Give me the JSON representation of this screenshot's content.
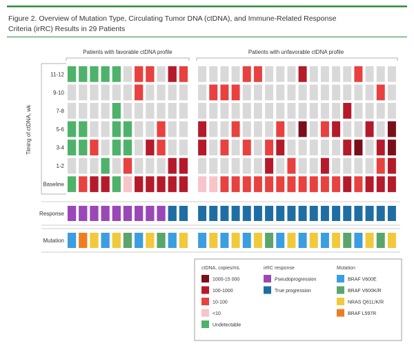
{
  "figure": {
    "title_line1": "Figure 2. Overview of Mutation Type, Circulating Tumor DNA (ctDNA), and Immune-Related Response",
    "title_line2": "Criteria (irRC) Results in 29 Patients",
    "accent_color": "#2e8b3c"
  },
  "chart_data": {
    "type": "heatmap",
    "group_labels": [
      "Patients with favorable ctDNA profile",
      "Patients with unfavorable ctDNA profile"
    ],
    "group_sizes": [
      11,
      18
    ],
    "ylabel": "Timing of ctDNA, wk",
    "rows": [
      "11-12",
      "9-10",
      "7-8",
      "5-6",
      "3-4",
      "1-2",
      "Baseline"
    ],
    "ctdna_levels": {
      "0": "Not measured",
      "1": "Undetectable",
      "2": "<10",
      "3": "10-100",
      "4": "100-1000",
      "5": "1000-15 000"
    },
    "ctdna_grid": [
      [
        1,
        1,
        1,
        1,
        1,
        0,
        3,
        3,
        0,
        4,
        3,
        0,
        0,
        0,
        0,
        3,
        3,
        0,
        0,
        0,
        4,
        0,
        0,
        0,
        0,
        3,
        0,
        0,
        0
      ],
      [
        0,
        0,
        0,
        0,
        0,
        0,
        3,
        0,
        0,
        0,
        0,
        0,
        3,
        3,
        3,
        0,
        0,
        0,
        0,
        0,
        0,
        0,
        0,
        0,
        0,
        0,
        0,
        3,
        0
      ],
      [
        0,
        0,
        0,
        0,
        1,
        0,
        0,
        0,
        0,
        0,
        0,
        0,
        0,
        0,
        0,
        0,
        0,
        0,
        0,
        0,
        0,
        0,
        0,
        0,
        4,
        0,
        0,
        0,
        0
      ],
      [
        1,
        1,
        0,
        0,
        1,
        1,
        0,
        0,
        3,
        0,
        0,
        4,
        0,
        0,
        3,
        0,
        0,
        0,
        3,
        0,
        5,
        0,
        3,
        4,
        0,
        0,
        4,
        0,
        5
      ],
      [
        1,
        1,
        3,
        0,
        1,
        1,
        0,
        4,
        3,
        0,
        0,
        4,
        0,
        3,
        0,
        3,
        0,
        3,
        4,
        0,
        0,
        0,
        0,
        0,
        4,
        5,
        0,
        4,
        5
      ],
      [
        0,
        0,
        0,
        1,
        0,
        3,
        0,
        0,
        0,
        4,
        4,
        0,
        0,
        0,
        0,
        0,
        0,
        4,
        0,
        3,
        0,
        0,
        4,
        0,
        0,
        0,
        0,
        3,
        4
      ],
      [
        1,
        3,
        4,
        4,
        1,
        2,
        4,
        4,
        4,
        4,
        4,
        2,
        2,
        3,
        3,
        3,
        3,
        3,
        3,
        3,
        3,
        3,
        3,
        3,
        4,
        3,
        4,
        4,
        4
      ]
    ],
    "response_row_label": "Response",
    "response": [
      "P",
      "P",
      "P",
      "P",
      "P",
      "P",
      "P",
      "P",
      "P",
      "T",
      "T",
      "T",
      "T",
      "T",
      "T",
      "T",
      "T",
      "T",
      "T",
      "T",
      "T",
      "T",
      "T",
      "T",
      "T",
      "T",
      "T",
      "T",
      "T"
    ],
    "mutation_row_label": "Mutation",
    "mutation": [
      "V6E",
      "L597R",
      "Q61",
      "V6E",
      "Q61",
      "V6KR",
      "V6E",
      "Q61",
      "V6KR",
      "V6E",
      "Q61",
      "V6E",
      "Q61",
      "V6E",
      "Q61",
      "V6E",
      "Q61",
      "V6KR",
      "V6E",
      "Q61",
      "V6E",
      "Q61",
      "V6E",
      "Q61",
      "V6KR",
      "V6E",
      "Q61",
      "V6KR",
      "Q61"
    ]
  },
  "legend": {
    "ctdna": {
      "title": "ctDNA, copies/mL",
      "items": [
        {
          "key": "5",
          "label": "1000-15 000",
          "color": "#7a0f1c"
        },
        {
          "key": "4",
          "label": "100-1000",
          "color": "#b51a2b"
        },
        {
          "key": "3",
          "label": "10-100",
          "color": "#e8413f"
        },
        {
          "key": "2",
          "label": "<10",
          "color": "#f6c4c9"
        },
        {
          "key": "1",
          "label": "Undetectable",
          "color": "#4fb26b"
        }
      ]
    },
    "response": {
      "title": "irRC response",
      "items": [
        {
          "key": "P",
          "label": "Pseudoprogression",
          "color": "#9a47b8"
        },
        {
          "key": "T",
          "label": "True progression",
          "color": "#1f6ea3"
        }
      ]
    },
    "mutation": {
      "title": "Mutation",
      "items": [
        {
          "key": "V6E",
          "label": "BRAF V600E",
          "color": "#3a9ee0"
        },
        {
          "key": "V6KR",
          "label": "BRAF V600K/R",
          "color": "#5aa56b"
        },
        {
          "key": "Q61",
          "label": "NRAS Q61L/K/R",
          "color": "#f1c93a"
        },
        {
          "key": "L597R",
          "label": "BRAF L597R",
          "color": "#ee7d22"
        }
      ]
    },
    "empty_color": "#d9d9d9"
  }
}
